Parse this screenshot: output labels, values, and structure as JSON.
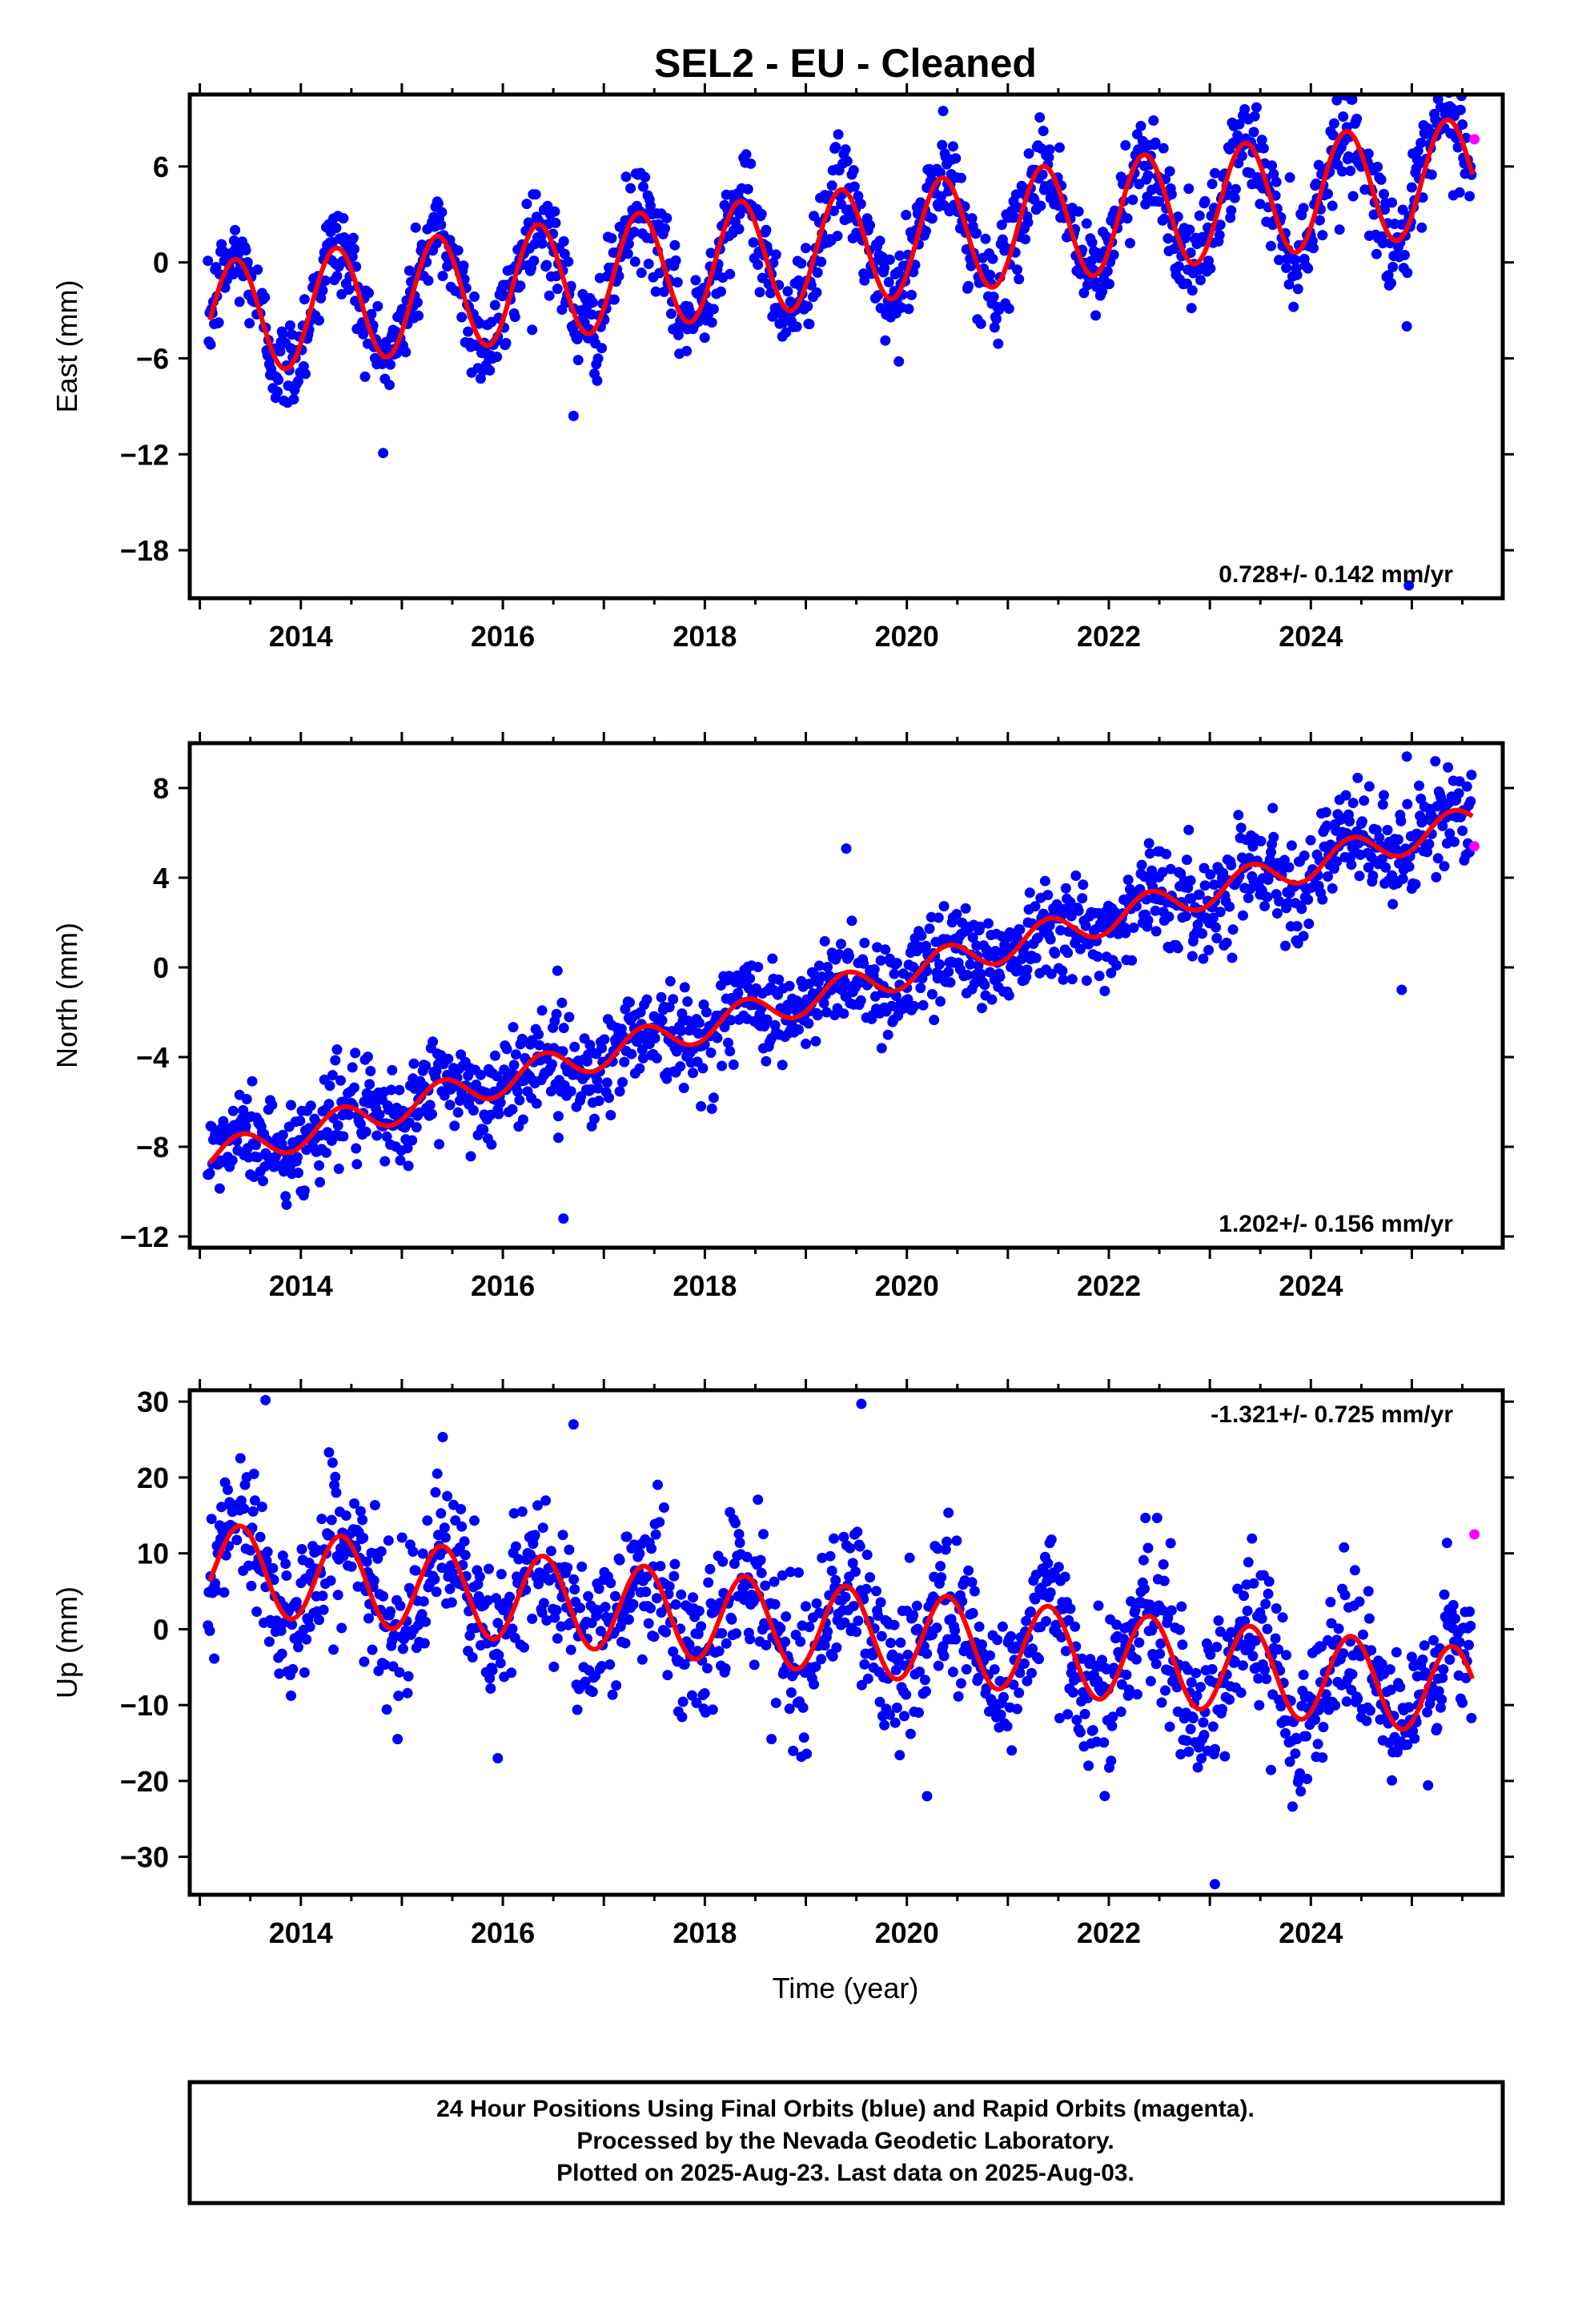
{
  "title": "SEL2  - EU - Cleaned",
  "colors": {
    "final": "#0000ff",
    "rapid": "#ff00ff",
    "model": "#ff0000",
    "frame": "#000000"
  },
  "chart_data": [
    {
      "type": "scatter",
      "component": "East",
      "ylabel": "East (mm)",
      "xlim": [
        2012.9,
        2025.9
      ],
      "ylim": [
        -21,
        10.5
      ],
      "yticks": [
        6,
        0,
        -6,
        -12,
        -18
      ],
      "yticklabels": [
        "6",
        "0",
        "−6",
        "−12",
        "−18"
      ],
      "xticks": [
        2014,
        2016,
        2018,
        2020,
        2022,
        2024
      ],
      "xticklabels": [
        "2014",
        "2016",
        "2018",
        "2020",
        "2022",
        "2024"
      ],
      "rate_label": "0.728+/- 0.142 mm/yr",
      "model": {
        "x0": 2013.1,
        "offset": -3.6,
        "slope": 0.728,
        "amp": 3.6,
        "phase_year": 2013.35,
        "x_end": 2025.6
      },
      "scatter": {
        "spread": 1.5,
        "n": 1400
      },
      "series": [
        {
          "name": "Final Orbits (blue)",
          "x_range": [
            2013.08,
            2025.59
          ]
        },
        {
          "name": "Rapid Orbits (magenta)",
          "points": [
            [
              2025.62,
              7.7
            ]
          ]
        }
      ],
      "outliers": [
        [
          2016.7,
          -9.6
        ],
        [
          2024.97,
          -20.2
        ],
        [
          2024.95,
          -4.0
        ]
      ],
      "xlabel": ""
    },
    {
      "type": "scatter",
      "component": "North",
      "ylabel": "North (mm)",
      "xlim": [
        2012.9,
        2025.9
      ],
      "ylim": [
        -12.5,
        10
      ],
      "yticks": [
        8,
        4,
        0,
        -4,
        -8,
        -12
      ],
      "yticklabels": [
        "8",
        "4",
        "0",
        "−4",
        "−8",
        "−12"
      ],
      "xticks": [
        2014,
        2016,
        2018,
        2020,
        2022,
        2024
      ],
      "xticklabels": [
        "2014",
        "2016",
        "2018",
        "2020",
        "2022",
        "2024"
      ],
      "rate_label": "1.202+/- 0.156 mm/yr",
      "model": {
        "x0": 2013.1,
        "offset": -8.5,
        "slope": 1.202,
        "amp": 0.7,
        "phase_year": 2013.4,
        "x_end": 2025.6
      },
      "scatter": {
        "spread": 1.1,
        "n": 1400
      },
      "series": [
        {
          "name": "Final Orbits (blue)",
          "x_range": [
            2013.08,
            2025.59
          ]
        },
        {
          "name": "Rapid Orbits (magenta)",
          "points": [
            [
              2025.62,
              5.4
            ]
          ]
        }
      ],
      "outliers": [
        [
          2016.6,
          -11.2
        ],
        [
          2016.55,
          -7.6
        ],
        [
          2019.4,
          5.3
        ],
        [
          2024.9,
          -1.0
        ],
        [
          2024.95,
          9.4
        ]
      ],
      "xlabel": ""
    },
    {
      "type": "scatter",
      "component": "Up",
      "ylabel": "Up (mm)",
      "xlim": [
        2012.9,
        2025.9
      ],
      "ylim": [
        -35,
        31.5
      ],
      "yticks": [
        30,
        20,
        10,
        0,
        -10,
        -20,
        -30
      ],
      "yticklabels": [
        "30",
        "20",
        "10",
        "0",
        "−10",
        "−20",
        "−30"
      ],
      "xticks": [
        2014,
        2016,
        2018,
        2020,
        2022,
        2024
      ],
      "xticklabels": [
        "2014",
        "2016",
        "2018",
        "2020",
        "2022",
        "2024"
      ],
      "rate_label": "-1.321+/- 0.725 mm/yr",
      "model": {
        "x0": 2013.1,
        "offset": 8.2,
        "slope": -1.321,
        "amp": 5.8,
        "phase_year": 2013.4,
        "x_end": 2025.6
      },
      "scatter": {
        "spread": 5.0,
        "n": 1400
      },
      "series": [
        {
          "name": "Final Orbits (blue)",
          "x_range": [
            2013.08,
            2025.59
          ]
        },
        {
          "name": "Rapid Orbits (magenta)",
          "points": [
            [
              2025.62,
              12.5
            ]
          ]
        }
      ],
      "outliers": [
        [
          2013.65,
          30.2
        ],
        [
          2019.55,
          29.7
        ],
        [
          2016.7,
          27.0
        ],
        [
          2023.05,
          -33.6
        ],
        [
          2015.95,
          -17.0
        ],
        [
          2020.2,
          -22.0
        ]
      ],
      "xlabel": "Time (year)"
    }
  ],
  "footer": {
    "line1": "24 Hour Positions Using Final Orbits (blue) and Rapid Orbits (magenta).",
    "line2": "Processed by the Nevada Geodetic Laboratory.",
    "line3": "Plotted on 2025-Aug-23. Last data on 2025-Aug-03."
  }
}
